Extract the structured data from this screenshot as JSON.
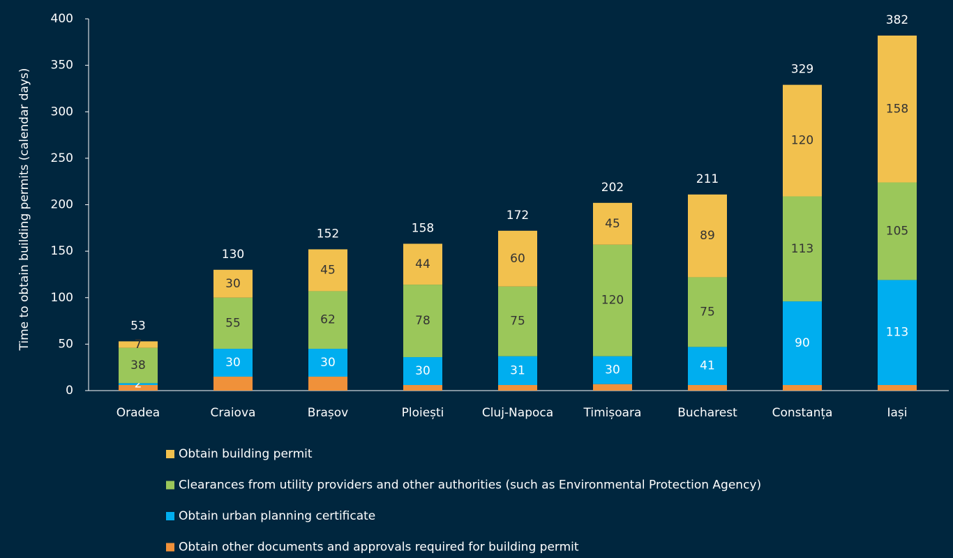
{
  "chart_data": {
    "type": "stacked_bar",
    "y_label": "Time to obtain building permits (calendar days)",
    "categories": [
      "Oradea",
      "Craiova",
      "Brașov",
      "Ploiești",
      "Cluj-Napoca",
      "Timișoara",
      "Bucharest",
      "Constanța",
      "Iași"
    ],
    "series": [
      {
        "name": "Obtain other documents and approvals required for building permit",
        "color": "#f0913a",
        "data_labels": false,
        "values": [
          6,
          15,
          15,
          6,
          6,
          7,
          6,
          6,
          6
        ]
      },
      {
        "name": "Obtain urban planning certificate",
        "color": "#00aeef",
        "data_labels": true,
        "label_color": "#ffffff",
        "values": [
          2,
          30,
          30,
          30,
          31,
          30,
          41,
          90,
          113
        ]
      },
      {
        "name": "Clearances from utility providers and other authorities (such as Environmental Protection Agency)",
        "color": "#9bc75a",
        "data_labels": true,
        "label_color": "#333333",
        "values": [
          38,
          55,
          62,
          78,
          75,
          120,
          75,
          113,
          105
        ]
      },
      {
        "name": "Obtain building permit",
        "color": "#f2c14e",
        "data_labels": true,
        "label_color": "#333333",
        "values": [
          7,
          30,
          45,
          44,
          60,
          45,
          89,
          120,
          158
        ]
      }
    ],
    "totals": [
      53,
      130,
      152,
      158,
      172,
      202,
      211,
      329,
      382
    ],
    "ylim": [
      0,
      400
    ],
    "yticks": [
      0,
      50,
      100,
      150,
      200,
      250,
      300,
      350,
      400
    ],
    "grid": false
  }
}
